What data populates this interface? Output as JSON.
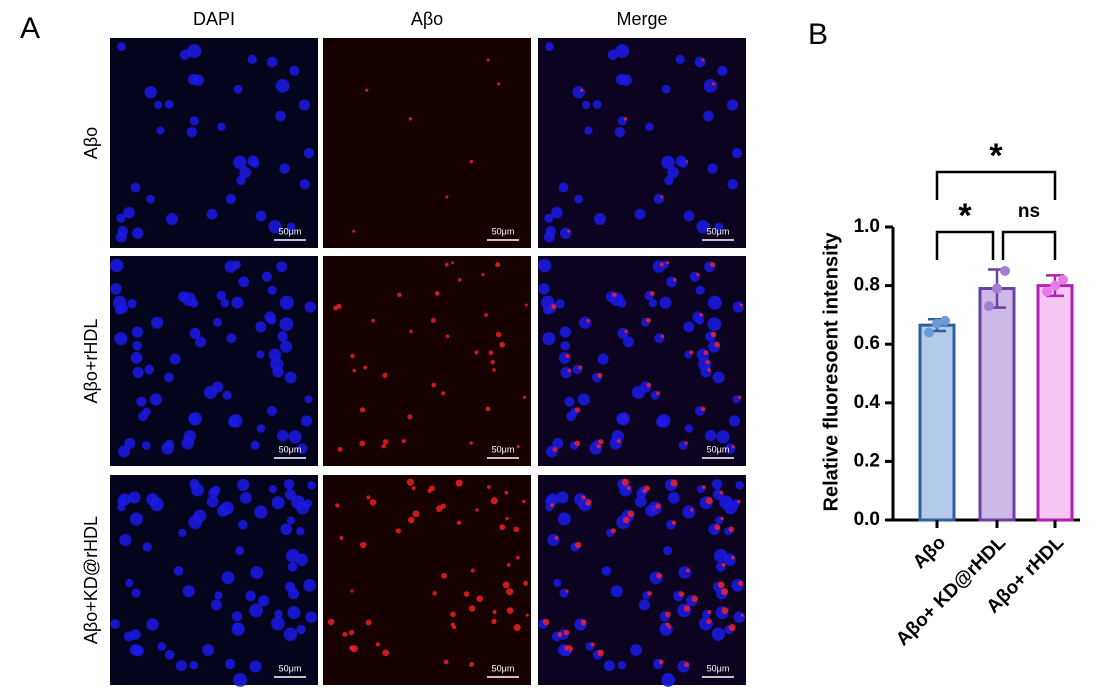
{
  "panel_a": {
    "label": "A",
    "columns": [
      "DAPI",
      "Aβo",
      "Merge"
    ],
    "rows": [
      "Aβo",
      "Aβo+rHDL",
      "Aβo+KD@rHDL"
    ],
    "scale_bar": "50μm"
  },
  "chart_data": {
    "type": "bar",
    "label": "B",
    "y_label": "Relative fluoresoent intensity",
    "categories": [
      "Aβo",
      "Aβo+ KD@rHDL",
      "Aβo+ rHDL"
    ],
    "values": [
      0.665,
      0.79,
      0.8
    ],
    "errors": [
      0.02,
      0.065,
      0.035
    ],
    "points": [
      [
        0.64,
        0.67,
        0.68
      ],
      [
        0.73,
        0.79,
        0.85
      ],
      [
        0.78,
        0.8,
        0.82
      ]
    ],
    "fill_colors": [
      "#b3cbe8",
      "#cdb9e8",
      "#f8c6f2"
    ],
    "edge_colors": [
      "#2e5fa0",
      "#6b3fa3",
      "#b21fb5"
    ],
    "point_colors": [
      "#6a9bd8",
      "#a27fd0",
      "#e67ae6"
    ],
    "ylim": [
      0,
      1.0
    ],
    "yticks": [
      {
        "value": 0,
        "label": "0.0"
      },
      {
        "value": 0.2,
        "label": "0.2"
      },
      {
        "value": 0.4,
        "label": "0.4"
      },
      {
        "value": 0.6,
        "label": "0.6"
      },
      {
        "value": 0.8,
        "label": "0.8"
      },
      {
        "value": 1.0,
        "label": "1.0"
      }
    ],
    "significance": [
      {
        "text": "*",
        "between": [
          "Aβo",
          "Aβo+ rHDL"
        ]
      },
      {
        "text": "*",
        "between": [
          "Aβo",
          "Aβo+ KD@rHDL"
        ]
      },
      {
        "text": "ns",
        "between": [
          "Aβo+ KD@rHDL",
          "Aβo+ rHDL"
        ]
      }
    ]
  }
}
